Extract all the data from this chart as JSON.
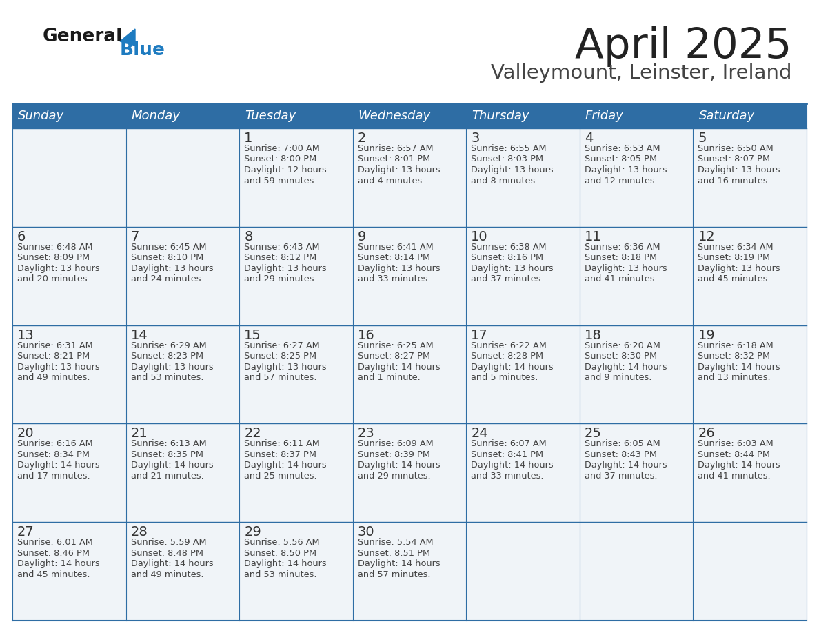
{
  "title": "April 2025",
  "subtitle": "Valleymount, Leinster, Ireland",
  "header_bg_color": "#2E6DA4",
  "header_text_color": "#FFFFFF",
  "cell_bg_color": "#F0F4F8",
  "day_number_color": "#333333",
  "cell_text_color": "#444444",
  "border_color": "#2E6DA4",
  "title_color": "#222222",
  "subtitle_color": "#444444",
  "days_of_week": [
    "Sunday",
    "Monday",
    "Tuesday",
    "Wednesday",
    "Thursday",
    "Friday",
    "Saturday"
  ],
  "logo_general_color": "#1a1a1a",
  "logo_blue_color": "#1E7BC0",
  "bg_color": "#FFFFFF",
  "calendar_data": [
    [
      {
        "day": "",
        "sunrise": "",
        "sunset": "",
        "daylight": ""
      },
      {
        "day": "",
        "sunrise": "",
        "sunset": "",
        "daylight": ""
      },
      {
        "day": "1",
        "sunrise": "7:00 AM",
        "sunset": "8:00 PM",
        "daylight": "12 hours",
        "daylight2": "and 59 minutes."
      },
      {
        "day": "2",
        "sunrise": "6:57 AM",
        "sunset": "8:01 PM",
        "daylight": "13 hours",
        "daylight2": "and 4 minutes."
      },
      {
        "day": "3",
        "sunrise": "6:55 AM",
        "sunset": "8:03 PM",
        "daylight": "13 hours",
        "daylight2": "and 8 minutes."
      },
      {
        "day": "4",
        "sunrise": "6:53 AM",
        "sunset": "8:05 PM",
        "daylight": "13 hours",
        "daylight2": "and 12 minutes."
      },
      {
        "day": "5",
        "sunrise": "6:50 AM",
        "sunset": "8:07 PM",
        "daylight": "13 hours",
        "daylight2": "and 16 minutes."
      }
    ],
    [
      {
        "day": "6",
        "sunrise": "6:48 AM",
        "sunset": "8:09 PM",
        "daylight": "13 hours",
        "daylight2": "and 20 minutes."
      },
      {
        "day": "7",
        "sunrise": "6:45 AM",
        "sunset": "8:10 PM",
        "daylight": "13 hours",
        "daylight2": "and 24 minutes."
      },
      {
        "day": "8",
        "sunrise": "6:43 AM",
        "sunset": "8:12 PM",
        "daylight": "13 hours",
        "daylight2": "and 29 minutes."
      },
      {
        "day": "9",
        "sunrise": "6:41 AM",
        "sunset": "8:14 PM",
        "daylight": "13 hours",
        "daylight2": "and 33 minutes."
      },
      {
        "day": "10",
        "sunrise": "6:38 AM",
        "sunset": "8:16 PM",
        "daylight": "13 hours",
        "daylight2": "and 37 minutes."
      },
      {
        "day": "11",
        "sunrise": "6:36 AM",
        "sunset": "8:18 PM",
        "daylight": "13 hours",
        "daylight2": "and 41 minutes."
      },
      {
        "day": "12",
        "sunrise": "6:34 AM",
        "sunset": "8:19 PM",
        "daylight": "13 hours",
        "daylight2": "and 45 minutes."
      }
    ],
    [
      {
        "day": "13",
        "sunrise": "6:31 AM",
        "sunset": "8:21 PM",
        "daylight": "13 hours",
        "daylight2": "and 49 minutes."
      },
      {
        "day": "14",
        "sunrise": "6:29 AM",
        "sunset": "8:23 PM",
        "daylight": "13 hours",
        "daylight2": "and 53 minutes."
      },
      {
        "day": "15",
        "sunrise": "6:27 AM",
        "sunset": "8:25 PM",
        "daylight": "13 hours",
        "daylight2": "and 57 minutes."
      },
      {
        "day": "16",
        "sunrise": "6:25 AM",
        "sunset": "8:27 PM",
        "daylight": "14 hours",
        "daylight2": "and 1 minute."
      },
      {
        "day": "17",
        "sunrise": "6:22 AM",
        "sunset": "8:28 PM",
        "daylight": "14 hours",
        "daylight2": "and 5 minutes."
      },
      {
        "day": "18",
        "sunrise": "6:20 AM",
        "sunset": "8:30 PM",
        "daylight": "14 hours",
        "daylight2": "and 9 minutes."
      },
      {
        "day": "19",
        "sunrise": "6:18 AM",
        "sunset": "8:32 PM",
        "daylight": "14 hours",
        "daylight2": "and 13 minutes."
      }
    ],
    [
      {
        "day": "20",
        "sunrise": "6:16 AM",
        "sunset": "8:34 PM",
        "daylight": "14 hours",
        "daylight2": "and 17 minutes."
      },
      {
        "day": "21",
        "sunrise": "6:13 AM",
        "sunset": "8:35 PM",
        "daylight": "14 hours",
        "daylight2": "and 21 minutes."
      },
      {
        "day": "22",
        "sunrise": "6:11 AM",
        "sunset": "8:37 PM",
        "daylight": "14 hours",
        "daylight2": "and 25 minutes."
      },
      {
        "day": "23",
        "sunrise": "6:09 AM",
        "sunset": "8:39 PM",
        "daylight": "14 hours",
        "daylight2": "and 29 minutes."
      },
      {
        "day": "24",
        "sunrise": "6:07 AM",
        "sunset": "8:41 PM",
        "daylight": "14 hours",
        "daylight2": "and 33 minutes."
      },
      {
        "day": "25",
        "sunrise": "6:05 AM",
        "sunset": "8:43 PM",
        "daylight": "14 hours",
        "daylight2": "and 37 minutes."
      },
      {
        "day": "26",
        "sunrise": "6:03 AM",
        "sunset": "8:44 PM",
        "daylight": "14 hours",
        "daylight2": "and 41 minutes."
      }
    ],
    [
      {
        "day": "27",
        "sunrise": "6:01 AM",
        "sunset": "8:46 PM",
        "daylight": "14 hours",
        "daylight2": "and 45 minutes."
      },
      {
        "day": "28",
        "sunrise": "5:59 AM",
        "sunset": "8:48 PM",
        "daylight": "14 hours",
        "daylight2": "and 49 minutes."
      },
      {
        "day": "29",
        "sunrise": "5:56 AM",
        "sunset": "8:50 PM",
        "daylight": "14 hours",
        "daylight2": "and 53 minutes."
      },
      {
        "day": "30",
        "sunrise": "5:54 AM",
        "sunset": "8:51 PM",
        "daylight": "14 hours",
        "daylight2": "and 57 minutes."
      },
      {
        "day": "",
        "sunrise": "",
        "sunset": "",
        "daylight": "",
        "daylight2": ""
      },
      {
        "day": "",
        "sunrise": "",
        "sunset": "",
        "daylight": "",
        "daylight2": ""
      },
      {
        "day": "",
        "sunrise": "",
        "sunset": "",
        "daylight": "",
        "daylight2": ""
      }
    ]
  ]
}
